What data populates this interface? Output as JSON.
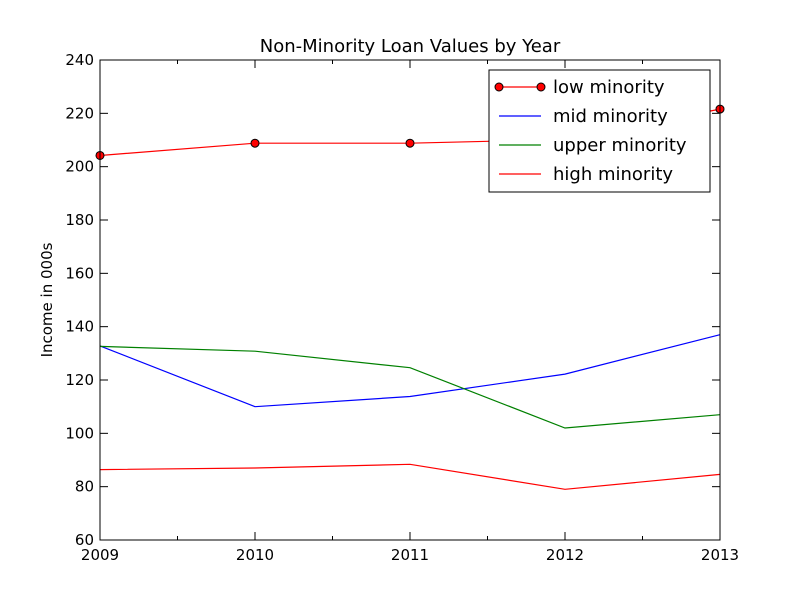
{
  "chart_data": {
    "type": "line",
    "title": "Non-Minority Loan Values by Year",
    "xlabel": "",
    "ylabel": "Income in 000s",
    "x": [
      2009,
      2010,
      2011,
      2012,
      2013
    ],
    "x_ticks": [
      "2009",
      "2010",
      "2011",
      "2012",
      "2013"
    ],
    "xlim": [
      2009,
      2013
    ],
    "ylim": [
      60,
      240
    ],
    "y_ticks": [
      "60",
      "80",
      "100",
      "120",
      "140",
      "160",
      "180",
      "200",
      "220",
      "240"
    ],
    "grid": false,
    "legend_position": "top-right",
    "series": [
      {
        "name": "low minority",
        "color": "#ff0000",
        "marker": "circle",
        "values": [
          204.2,
          208.8,
          208.8,
          210.2,
          221.6
        ]
      },
      {
        "name": "mid minority",
        "color": "#0000ff",
        "marker": "none",
        "values": [
          132.8,
          110.0,
          113.8,
          122.2,
          137.0
        ]
      },
      {
        "name": "upper minority",
        "color": "#008000",
        "marker": "none",
        "values": [
          132.6,
          130.8,
          124.6,
          102.0,
          107.0
        ]
      },
      {
        "name": "high minority",
        "color": "#ff0000",
        "marker": "none",
        "values": [
          86.4,
          87.0,
          88.4,
          79.0,
          84.6
        ]
      }
    ]
  }
}
